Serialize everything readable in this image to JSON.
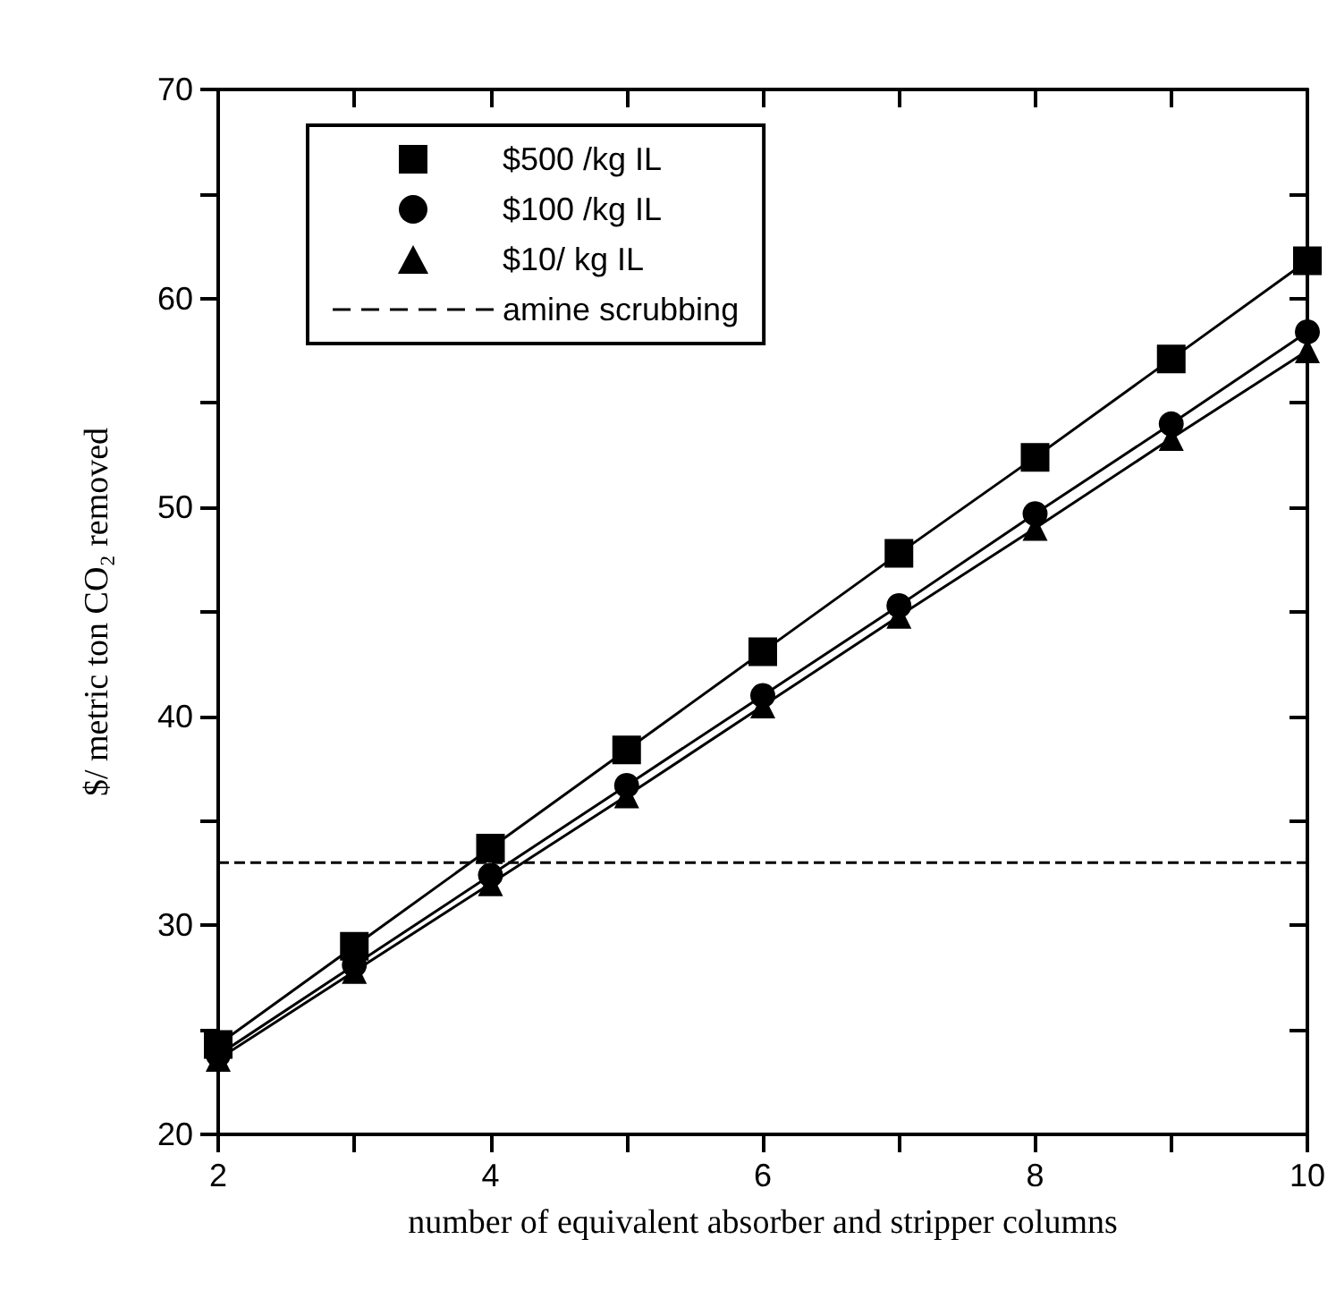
{
  "chart_data": {
    "type": "line",
    "xlabel": "number of equivalent absorber and stripper columns",
    "ylabel": "$/ metric ton CO₂ removed",
    "x": [
      2,
      3,
      4,
      5,
      6,
      7,
      8,
      9,
      10
    ],
    "series": [
      {
        "name": "$500 /kg IL",
        "color": "#000000",
        "marker": "square",
        "values": [
          24.3,
          29.0,
          33.7,
          38.4,
          43.1,
          47.8,
          52.4,
          57.1,
          61.8
        ]
      },
      {
        "name": "$100 /kg IL",
        "color": "#000000",
        "marker": "circle",
        "values": [
          23.8,
          28.1,
          32.4,
          36.7,
          41.0,
          45.3,
          49.7,
          54.0,
          58.4
        ]
      },
      {
        "name": "$10/ kg IL",
        "color": "#000000",
        "marker": "triangle",
        "values": [
          23.6,
          27.8,
          32.0,
          36.2,
          40.5,
          44.8,
          49.0,
          53.3,
          57.5
        ]
      }
    ],
    "ref_lines": [
      {
        "axis": "y",
        "value": 33,
        "label": "amine scrubbing",
        "color": "#000000",
        "line_style": "dashed"
      }
    ],
    "xlim": [
      2,
      10
    ],
    "ylim": [
      20,
      70
    ],
    "xticks": [
      2,
      {
        "value": 3,
        "label": null
      },
      4,
      {
        "value": 5,
        "label": null
      },
      6,
      {
        "value": 7,
        "label": null
      },
      8,
      {
        "value": 9,
        "label": null
      },
      10
    ],
    "yticks": [
      20,
      {
        "value": 25,
        "label": null
      },
      30,
      {
        "value": 35,
        "label": null
      },
      40,
      {
        "value": 45,
        "label": null
      },
      50,
      {
        "value": 55,
        "label": null
      },
      60,
      {
        "value": 65,
        "label": null
      },
      70
    ],
    "grid": false,
    "legend": "top left",
    "line_style": "solid"
  }
}
